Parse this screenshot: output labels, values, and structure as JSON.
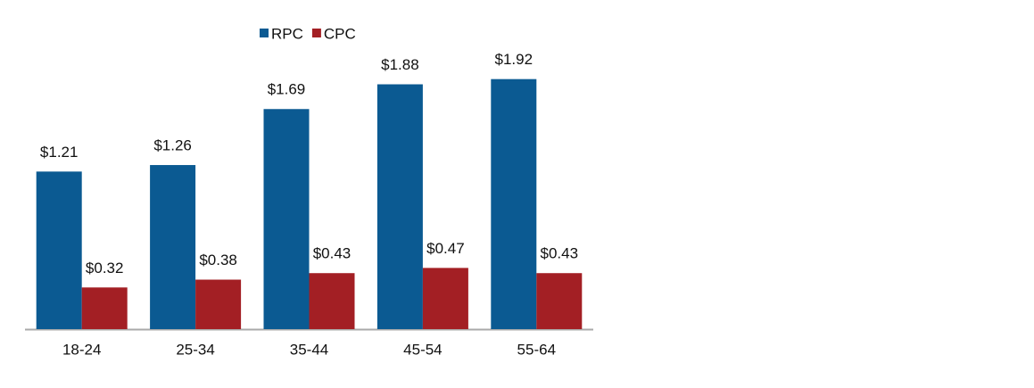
{
  "chart_data": {
    "type": "bar",
    "categories": [
      "18-24",
      "25-34",
      "35-44",
      "45-54",
      "55-64"
    ],
    "series": [
      {
        "name": "RPC",
        "color": "#0b5a92",
        "values": [
          1.21,
          1.26,
          1.69,
          1.88,
          1.92
        ],
        "value_labels": [
          "$1.21",
          "$1.26",
          "$1.69",
          "$1.88",
          "$1.92"
        ]
      },
      {
        "name": "CPC",
        "color": "#a31f24",
        "values": [
          0.32,
          0.38,
          0.43,
          0.47,
          0.43
        ],
        "value_labels": [
          "$0.32",
          "$0.38",
          "$0.43",
          "$0.47",
          "$0.43"
        ]
      }
    ]
  }
}
